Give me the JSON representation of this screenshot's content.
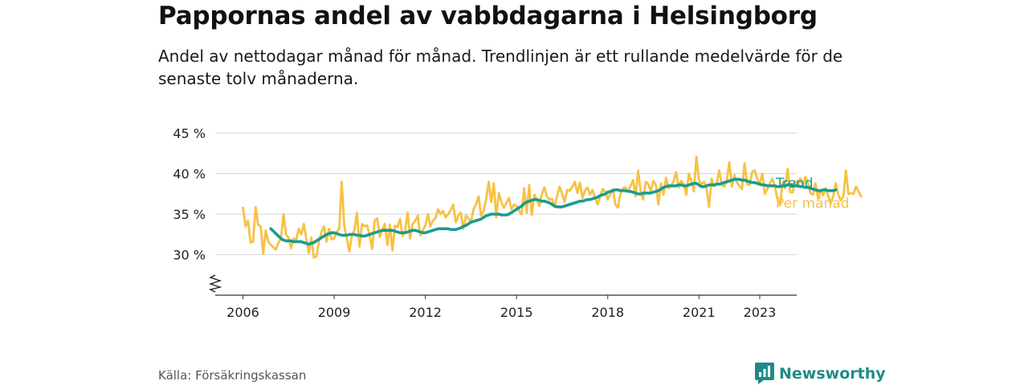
{
  "title": "Pappornas andel av vabbdagarna i Helsingborg",
  "subtitle": "Andel av nettodagar månad för månad. Trendlinjen är ett rullande medelvärde för de senaste tolv månaderna.",
  "source": "Källa: Försäkringskassan",
  "brand": "Newsworthy",
  "colors": {
    "trend": "#1a9c8f",
    "monthly": "#f7c144",
    "brand": "#1e8c86"
  },
  "chart_data": {
    "type": "line",
    "title": "Pappornas andel av vabbdagarna i Helsingborg",
    "ylim": [
      25,
      45
    ],
    "yticks": [
      30,
      35,
      40,
      45
    ],
    "ytick_labels": [
      "30 %",
      "35 %",
      "40 %",
      "45 %"
    ],
    "xticks": [
      2006,
      2009,
      2012,
      2015,
      2018,
      2021,
      2023
    ],
    "xtick_labels": [
      "2006",
      "2009",
      "2012",
      "2015",
      "2018",
      "2021",
      "2023"
    ],
    "y_axis_broken": true,
    "grid": "horizontal",
    "legend": "direct labels at line ends (right)",
    "series": [
      {
        "name": "Per månad",
        "x_start": "2006-01",
        "frequency": "monthly",
        "values": [
          35.8,
          33.5,
          34.2,
          31.5,
          31.6,
          35.9,
          33.7,
          33.5,
          30.1,
          33.0,
          31.6,
          31.2,
          30.9,
          30.6,
          31.5,
          31.9,
          35.0,
          32.5,
          32.1,
          30.8,
          32.0,
          31.8,
          33.2,
          32.5,
          33.8,
          32.0,
          30.2,
          32.1,
          29.6,
          29.8,
          31.6,
          32.8,
          33.5,
          31.6,
          33.2,
          31.9,
          32.0,
          32.8,
          33.2,
          39.0,
          33.5,
          32.0,
          30.4,
          32.4,
          33.0,
          35.2,
          31.0,
          33.8,
          33.5,
          33.6,
          32.4,
          30.7,
          34.2,
          34.5,
          32.2,
          33.0,
          33.8,
          31.2,
          33.7,
          30.5,
          33.6,
          33.4,
          34.4,
          32.3,
          33.0,
          35.2,
          32.0,
          33.8,
          34.2,
          34.8,
          32.4,
          33.0,
          33.6,
          35.0,
          33.5,
          34.2,
          34.5,
          35.6,
          35.0,
          35.4,
          34.6,
          35.0,
          35.5,
          36.2,
          34.0,
          34.8,
          35.2,
          33.2,
          34.8,
          34.5,
          34.0,
          35.6,
          36.2,
          37.2,
          34.8,
          35.4,
          36.8,
          39.0,
          36.5,
          38.8,
          34.6,
          37.6,
          36.5,
          35.8,
          36.4,
          37.0,
          35.6,
          36.2,
          36.0,
          35.4,
          35.0,
          38.2,
          35.2,
          38.6,
          34.9,
          37.4,
          36.8,
          36.0,
          37.5,
          38.3,
          37.2,
          36.8,
          36.9,
          35.9,
          37.2,
          38.4,
          37.5,
          36.5,
          38.0,
          37.9,
          38.4,
          39.0,
          37.6,
          38.9,
          37.0,
          37.9,
          38.3,
          37.4,
          38.0,
          37.0,
          36.2,
          37.2,
          38.1,
          37.8,
          36.8,
          37.5,
          38.1,
          36.2,
          35.8,
          37.5,
          38.2,
          38.3,
          37.8,
          38.5,
          39.2,
          37.2,
          40.4,
          37.8,
          36.8,
          39.0,
          38.7,
          37.8,
          39.1,
          38.6,
          36.2,
          38.8,
          37.4,
          39.5,
          38.2,
          38.5,
          39.1,
          40.2,
          38.3,
          39.1,
          38.7,
          37.4,
          40.0,
          39.1,
          37.8,
          42.1,
          39.2,
          38.7,
          39.0,
          38.1,
          35.9,
          39.4,
          38.4,
          38.8,
          40.4,
          38.6,
          38.4,
          39.2,
          41.4,
          38.4,
          39.8,
          38.9,
          38.5,
          38.1,
          41.3,
          38.7,
          38.6,
          40.2,
          40.4,
          39.4,
          38.7,
          40.0,
          37.5,
          38.1,
          38.8,
          39.4,
          38.4,
          36.8,
          36.1,
          38.9,
          38.2,
          40.6,
          37.7,
          37.7,
          39.1,
          38.6,
          39.4,
          38.4,
          39.6,
          38.9,
          37.6,
          37.4,
          38.8,
          36.9,
          38.0,
          37.3,
          38.2,
          37.3,
          36.3,
          37.2,
          38.8,
          37.4,
          36.7,
          37.2,
          40.4,
          37.5,
          37.6,
          37.5,
          38.4,
          37.8,
          37.2
        ]
      },
      {
        "name": "Trend",
        "x_start": "2006-12",
        "frequency": "monthly",
        "values": [
          33.2,
          32.9,
          32.6,
          32.3,
          32.0,
          31.8,
          31.7,
          31.7,
          31.7,
          31.6,
          31.6,
          31.6,
          31.6,
          31.5,
          31.4,
          31.3,
          31.4,
          31.5,
          31.7,
          31.9,
          32.1,
          32.3,
          32.5,
          32.6,
          32.7,
          32.7,
          32.6,
          32.5,
          32.4,
          32.4,
          32.4,
          32.5,
          32.5,
          32.5,
          32.4,
          32.4,
          32.3,
          32.3,
          32.4,
          32.5,
          32.6,
          32.7,
          32.8,
          32.9,
          33.0,
          33.0,
          33.0,
          33.0,
          33.0,
          32.9,
          32.8,
          32.7,
          32.7,
          32.7,
          32.8,
          32.9,
          33.0,
          33.0,
          32.9,
          32.8,
          32.7,
          32.7,
          32.8,
          32.9,
          33.0,
          33.1,
          33.2,
          33.2,
          33.2,
          33.2,
          33.2,
          33.1,
          33.1,
          33.1,
          33.2,
          33.3,
          33.5,
          33.6,
          33.8,
          34.0,
          34.1,
          34.2,
          34.3,
          34.4,
          34.6,
          34.8,
          34.9,
          35.0,
          35.0,
          35.0,
          35.0,
          34.9,
          34.9,
          34.9,
          35.0,
          35.2,
          35.4,
          35.6,
          35.8,
          36.0,
          36.3,
          36.5,
          36.6,
          36.7,
          36.8,
          36.8,
          36.7,
          36.6,
          36.6,
          36.5,
          36.4,
          36.2,
          36.0,
          35.9,
          35.9,
          35.9,
          36.0,
          36.1,
          36.2,
          36.3,
          36.4,
          36.5,
          36.6,
          36.6,
          36.7,
          36.8,
          36.8,
          36.9,
          37.0,
          37.1,
          37.3,
          37.4,
          37.5,
          37.7,
          37.8,
          37.9,
          38.0,
          38.0,
          37.9,
          37.9,
          37.9,
          37.8,
          37.8,
          37.7,
          37.6,
          37.5,
          37.5,
          37.6,
          37.6,
          37.6,
          37.6,
          37.7,
          37.8,
          37.9,
          38.1,
          38.3,
          38.4,
          38.5,
          38.5,
          38.5,
          38.5,
          38.6,
          38.6,
          38.5,
          38.5,
          38.6,
          38.7,
          38.8,
          38.8,
          38.6,
          38.4,
          38.4,
          38.5,
          38.6,
          38.6,
          38.6,
          38.7,
          38.7,
          38.8,
          38.9,
          39.0,
          39.1,
          39.2,
          39.3,
          39.3,
          39.3,
          39.2,
          39.2,
          39.1,
          39.0,
          38.9,
          38.9,
          38.8,
          38.7,
          38.6,
          38.6,
          38.5,
          38.5,
          38.5,
          38.5,
          38.4,
          38.4,
          38.5,
          38.5,
          38.6,
          38.6,
          38.5,
          38.5,
          38.5,
          38.4,
          38.4,
          38.3,
          38.3,
          38.2,
          38.1,
          38.0,
          37.9,
          37.9,
          38.0,
          38.0,
          37.9,
          37.9,
          37.9,
          38.0
        ]
      }
    ]
  }
}
